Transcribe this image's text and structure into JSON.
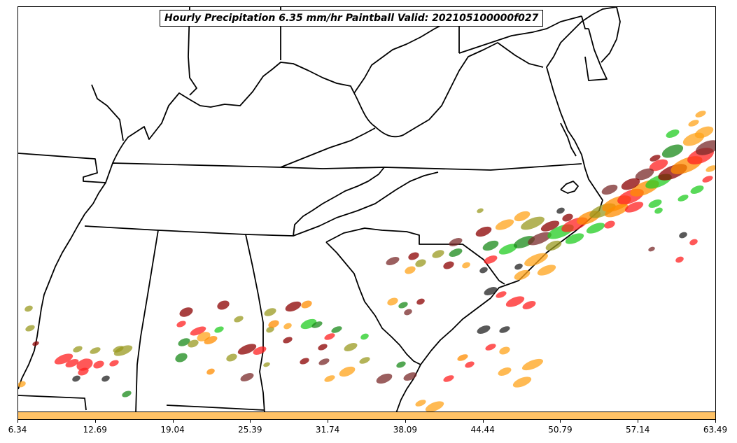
{
  "title": "Hourly Precipitation 6.35 mm/hr Paintball Valid: 202105100000f027",
  "colorbar": {
    "color": "#ffc266",
    "ticks": [
      "6.34",
      "12.69",
      "19.04",
      "25.39",
      "31.74",
      "38.09",
      "44.44",
      "50.79",
      "57.14",
      "63.49"
    ]
  },
  "member_colors": [
    "#8b0000",
    "#ff2020",
    "#ff8c00",
    "#ffa31a",
    "#9a9a20",
    "#1a8a1a",
    "#22cc22",
    "#222222",
    "#7a2a2a"
  ]
}
